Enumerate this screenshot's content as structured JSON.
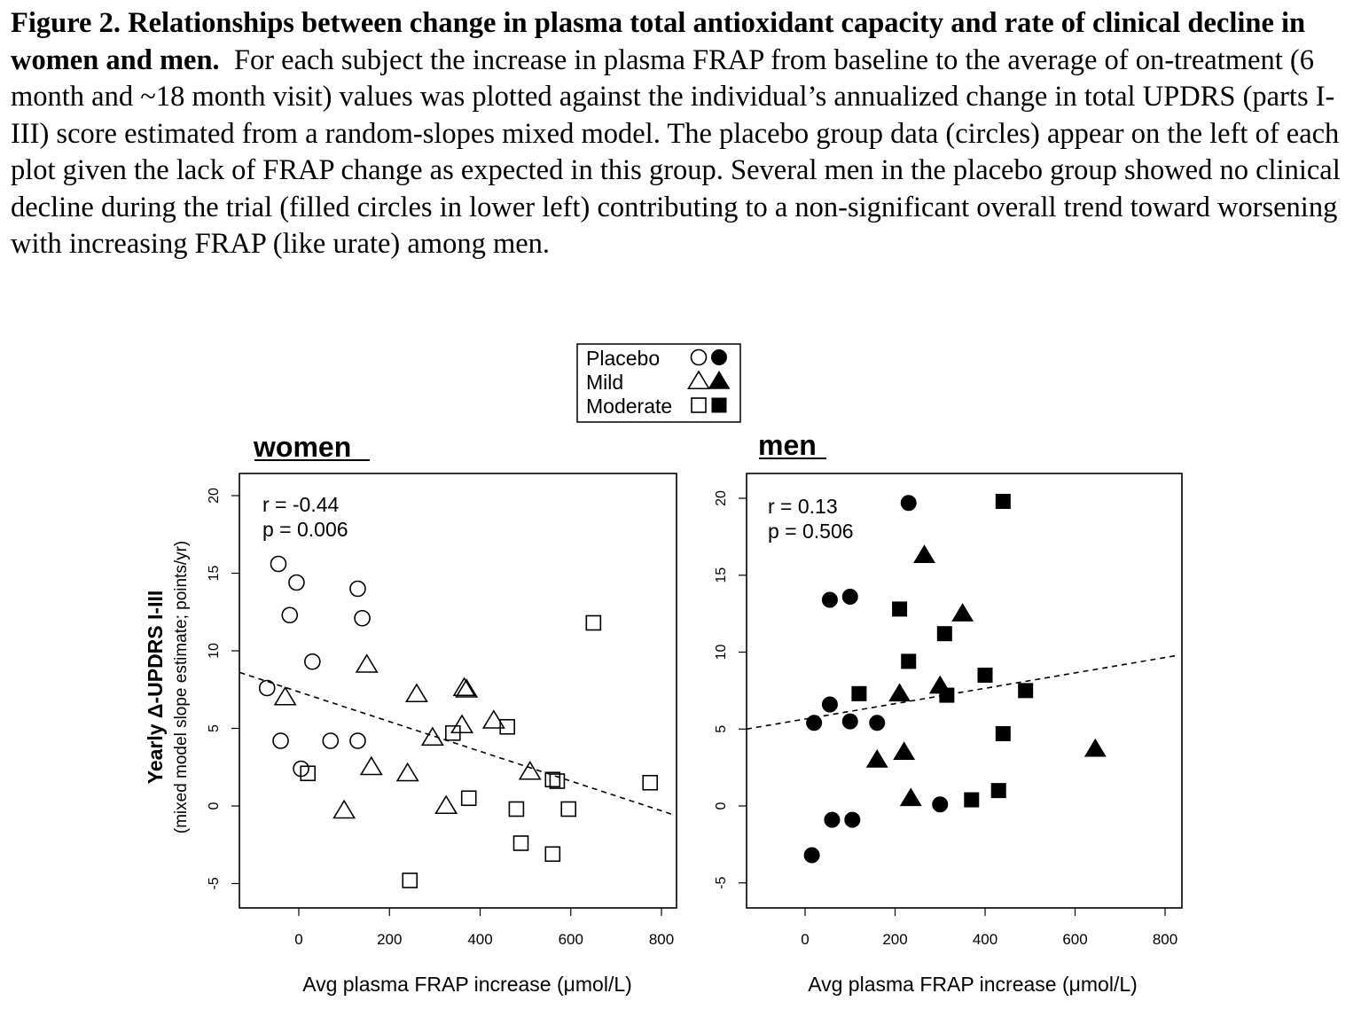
{
  "caption": {
    "bold": "Figure 2.  Relationships between change in plasma total antioxidant capacity and rate of clinical decline in women and men.",
    "text": "For each subject the increase in plasma FRAP from baseline to the average of on-treatment (6 month and ~18 month visit) values was plotted against the individual’s annualized change in total UPDRS (parts I-III) score estimated from a random-slopes mixed model. The placebo group data (circles) appear on the left of each plot given the lack of FRAP change as expected in this group. Several men in the placebo group showed no clinical decline during the trial (filled circles in lower left) contributing to a non-significant overall trend toward worsening with increasing FRAP (like urate) among men."
  },
  "legend": {
    "items": [
      {
        "label": "Placebo",
        "shape": "circle"
      },
      {
        "label": "Mild",
        "shape": "triangle"
      },
      {
        "label": "Moderate",
        "shape": "square"
      }
    ]
  },
  "shared": {
    "ylabel": "Yearly Δ-UPDRS I-III",
    "ylabel_sub": "(mixed model slope estimate; points/yr)"
  },
  "chart_data": [
    {
      "type": "scatter",
      "title": "women",
      "xlabel": "Avg plasma FRAP increase (μmol/L)",
      "ylabel": "Yearly Δ-UPDRS I-III",
      "xlim": [
        -130,
        830
      ],
      "ylim": [
        -6.5,
        21
      ],
      "xticks": [
        0,
        200,
        400,
        600,
        800
      ],
      "yticks": [
        -5,
        0,
        5,
        10,
        15,
        20
      ],
      "filled": false,
      "annotation": [
        "r = -0.44",
        "p = 0.006"
      ],
      "trend_line": {
        "x": [
          -130,
          830
        ],
        "y": [
          8.6,
          -0.6
        ],
        "style": "dashed"
      },
      "series": [
        {
          "name": "Placebo",
          "shape": "circle",
          "points": [
            [
              -45,
              15.6
            ],
            [
              -5,
              14.4
            ],
            [
              -20,
              12.3
            ],
            [
              130,
              14.0
            ],
            [
              140,
              12.1
            ],
            [
              30,
              9.3
            ],
            [
              -70,
              7.6
            ],
            [
              -40,
              4.2
            ],
            [
              70,
              4.2
            ],
            [
              130,
              4.2
            ],
            [
              5,
              2.4
            ]
          ]
        },
        {
          "name": "Mild",
          "shape": "triangle",
          "points": [
            [
              150,
              9.1
            ],
            [
              -30,
              7.0
            ],
            [
              260,
              7.2
            ],
            [
              365,
              7.6
            ],
            [
              370,
              7.5
            ],
            [
              360,
              5.2
            ],
            [
              430,
              5.5
            ],
            [
              295,
              4.4
            ],
            [
              160,
              2.5
            ],
            [
              240,
              2.1
            ],
            [
              510,
              2.2
            ],
            [
              100,
              -0.3
            ],
            [
              325,
              0.0
            ]
          ]
        },
        {
          "name": "Moderate",
          "shape": "square",
          "points": [
            [
              650,
              11.8
            ],
            [
              340,
              4.7
            ],
            [
              460,
              5.1
            ],
            [
              20,
              2.1
            ],
            [
              560,
              1.7
            ],
            [
              570,
              1.6
            ],
            [
              775,
              1.5
            ],
            [
              375,
              0.5
            ],
            [
              480,
              -0.2
            ],
            [
              595,
              -0.2
            ],
            [
              490,
              -2.4
            ],
            [
              560,
              -3.1
            ],
            [
              245,
              -4.8
            ]
          ]
        }
      ]
    },
    {
      "type": "scatter",
      "title": "men",
      "xlabel": "Avg plasma FRAP increase (μmol/L)",
      "ylabel": "Yearly Δ-UPDRS I-III",
      "xlim": [
        -130,
        830
      ],
      "ylim": [
        -6.5,
        21
      ],
      "xticks": [
        0,
        200,
        400,
        600,
        800
      ],
      "yticks": [
        -5,
        0,
        5,
        10,
        15,
        20
      ],
      "filled": true,
      "annotation": [
        "r =  0.13",
        "p = 0.506"
      ],
      "trend_line": {
        "x": [
          -130,
          830
        ],
        "y": [
          5.0,
          9.8
        ],
        "style": "dashed"
      },
      "series": [
        {
          "name": "Placebo",
          "shape": "circle",
          "points": [
            [
              230,
              19.7
            ],
            [
              55,
              13.4
            ],
            [
              100,
              13.6
            ],
            [
              55,
              6.6
            ],
            [
              20,
              5.4
            ],
            [
              100,
              5.5
            ],
            [
              160,
              5.4
            ],
            [
              300,
              0.1
            ],
            [
              60,
              -0.9
            ],
            [
              105,
              -0.9
            ],
            [
              15,
              -3.2
            ]
          ]
        },
        {
          "name": "Mild",
          "shape": "triangle",
          "points": [
            [
              265,
              16.3
            ],
            [
              350,
              12.5
            ],
            [
              300,
              7.8
            ],
            [
              210,
              7.3
            ],
            [
              220,
              3.5
            ],
            [
              160,
              3.0
            ],
            [
              235,
              0.5
            ],
            [
              645,
              3.7
            ]
          ]
        },
        {
          "name": "Moderate",
          "shape": "square",
          "points": [
            [
              440,
              19.8
            ],
            [
              210,
              12.8
            ],
            [
              310,
              11.2
            ],
            [
              230,
              9.4
            ],
            [
              400,
              8.5
            ],
            [
              120,
              7.3
            ],
            [
              490,
              7.5
            ],
            [
              315,
              7.2
            ],
            [
              440,
              4.7
            ],
            [
              430,
              1.0
            ],
            [
              370,
              0.4
            ]
          ]
        }
      ]
    }
  ]
}
